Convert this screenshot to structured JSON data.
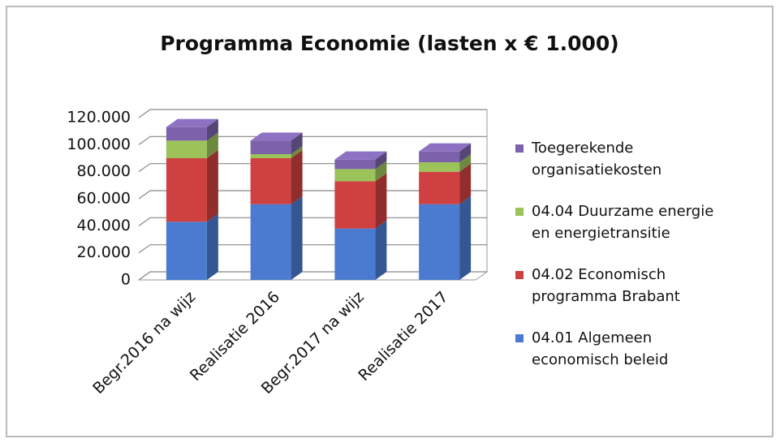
{
  "chart_data": {
    "type": "bar3d_stacked",
    "title": "Programma Economie (lasten x € 1.000)",
    "categories": [
      "Begr.2016 na wijz",
      "Realisatie 2016",
      "Begr.2017 na wijz",
      "Realisatie 2017"
    ],
    "series": [
      {
        "name": "04.01 Algemeen economisch beleid",
        "color": "#4a7bd0",
        "values": [
          43000,
          56000,
          38000,
          56000
        ]
      },
      {
        "name": "04.02 Economisch programma Brabant",
        "color": "#cf4040",
        "values": [
          47000,
          34000,
          35000,
          24000
        ]
      },
      {
        "name": "04.04 Duurzame energie en energietransitie",
        "color": "#9bc35a",
        "values": [
          13000,
          3000,
          9000,
          7000
        ]
      },
      {
        "name": "Toegerekende organisatiekosten",
        "color": "#7b62aa",
        "values": [
          10000,
          10000,
          7000,
          8000
        ]
      }
    ],
    "ylim": [
      0,
      120000
    ],
    "yticks": [
      {
        "value": 0,
        "label": "0"
      },
      {
        "value": 20000,
        "label": "20.000"
      },
      {
        "value": 40000,
        "label": "40.000"
      },
      {
        "value": 60000,
        "label": "60.000"
      },
      {
        "value": 80000,
        "label": "80.000"
      },
      {
        "value": 100000,
        "label": "100.000"
      },
      {
        "value": 120000,
        "label": "120.000"
      }
    ],
    "grid": true
  }
}
